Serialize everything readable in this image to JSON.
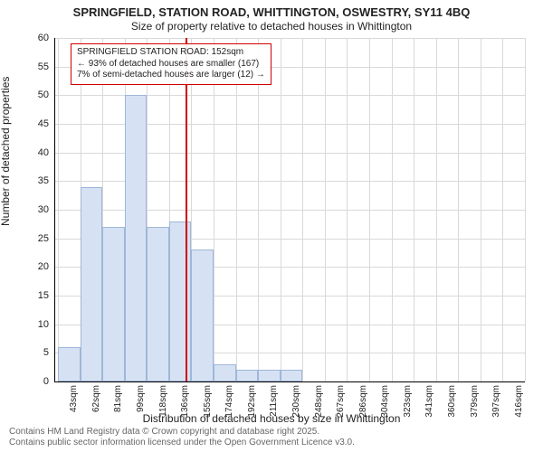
{
  "title": "SPRINGFIELD, STATION ROAD, WHITTINGTON, OSWESTRY, SY11 4BQ",
  "subtitle": "Size of property relative to detached houses in Whittington",
  "ylabel": "Number of detached properties",
  "xlabel": "Distribution of detached houses by size in Whittington",
  "attribution_line1": "Contains HM Land Registry data © Crown copyright and database right 2025.",
  "attribution_line2": "Contains public sector information licensed under the Open Government Licence v3.0.",
  "chart": {
    "type": "histogram",
    "ylim": [
      0,
      60
    ],
    "ytick_step": 5,
    "bar_fill": "#d6e2f3",
    "bar_stroke": "#9fb6d8",
    "background_color": "#ffffff",
    "grid_color": "#d9d9d9",
    "axis_color": "#000000",
    "font_size_ticks": 10,
    "font_size_labels": 12,
    "marker": {
      "position_sqm": 152,
      "color": "#d00000",
      "callout": {
        "line1": "SPRINGFIELD STATION ROAD: 152sqm",
        "line2": "← 93% of detached houses are smaller (167)",
        "line3": "7% of semi-detached houses are larger (12) →"
      }
    },
    "bins": [
      {
        "label": "43sqm",
        "value": 6
      },
      {
        "label": "62sqm",
        "value": 34
      },
      {
        "label": "81sqm",
        "value": 27
      },
      {
        "label": "99sqm",
        "value": 50
      },
      {
        "label": "118sqm",
        "value": 27
      },
      {
        "label": "136sqm",
        "value": 28
      },
      {
        "label": "155sqm",
        "value": 23
      },
      {
        "label": "174sqm",
        "value": 3
      },
      {
        "label": "192sqm",
        "value": 2
      },
      {
        "label": "211sqm",
        "value": 2
      },
      {
        "label": "230sqm",
        "value": 2
      },
      {
        "label": "248sqm",
        "value": 0
      },
      {
        "label": "267sqm",
        "value": 0
      },
      {
        "label": "286sqm",
        "value": 0
      },
      {
        "label": "304sqm",
        "value": 0
      },
      {
        "label": "323sqm",
        "value": 0
      },
      {
        "label": "341sqm",
        "value": 0
      },
      {
        "label": "360sqm",
        "value": 0
      },
      {
        "label": "379sqm",
        "value": 0
      },
      {
        "label": "397sqm",
        "value": 0
      },
      {
        "label": "416sqm",
        "value": 0
      }
    ]
  }
}
